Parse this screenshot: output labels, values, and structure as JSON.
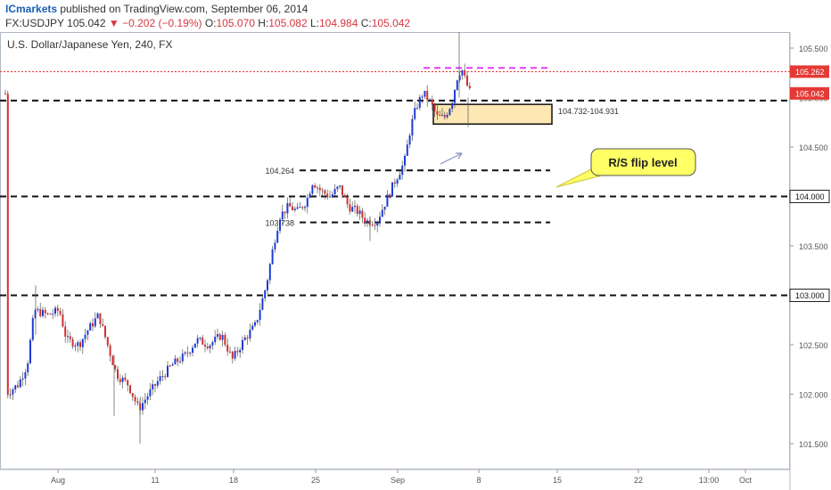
{
  "header": {
    "publisher": "ICmarkets",
    "published_text": "published on TradingView.com, September 06, 2014",
    "symbol": "FX:USDJPY",
    "last": "105.042",
    "change": "▼ −0.202 (−0.19%)",
    "o_label": "O:",
    "o_value": "105.070",
    "h_label": "H:",
    "h_value": "105.082",
    "l_label": "L:",
    "l_value": "104.984",
    "c_label": "C:",
    "c_value": "105.042"
  },
  "chart_data": {
    "type": "candlestick",
    "title": "U.S. Dollar/Japanese Yen, 240, FX",
    "ylim": [
      101.3,
      105.75
    ],
    "y_ticks": [
      "105.500",
      "105.000",
      "104.500",
      "104.000",
      "103.500",
      "103.000",
      "102.500",
      "102.000",
      "101.500"
    ],
    "x_ticks": [
      "Aug",
      "11",
      "18",
      "25",
      "Sep",
      "8",
      "15",
      "22",
      "13:00",
      "Oct"
    ],
    "price_badges": [
      {
        "label": "105.262",
        "value": 105.262,
        "color": "#e53935"
      },
      {
        "label": "105.042",
        "value": 105.042,
        "color": "#e53935"
      }
    ],
    "axis_labels": [
      {
        "label": "104.000",
        "value": 104.0
      },
      {
        "label": "103.000",
        "value": 103.0
      }
    ],
    "levels": [
      {
        "value": 105.262,
        "style": "dotted",
        "color": "#e53935",
        "extent": "full"
      },
      {
        "value": 105.3,
        "style": "dashed",
        "color": "#e040fb",
        "extent": "short"
      },
      {
        "value": 104.97,
        "style": "dashed",
        "color": "#111111",
        "extent": "full"
      },
      {
        "value": 104.264,
        "style": "dashed",
        "color": "#111111",
        "extent": "partial",
        "label": "104.264"
      },
      {
        "value": 104.0,
        "style": "dashed",
        "color": "#111111",
        "extent": "full"
      },
      {
        "value": 103.738,
        "style": "dashed",
        "color": "#111111",
        "extent": "partial",
        "label": "103.738"
      },
      {
        "value": 103.0,
        "style": "dashed",
        "color": "#111111",
        "extent": "full"
      }
    ],
    "zone": {
      "low": 104.732,
      "high": 104.931,
      "label": "104.732-104.931",
      "color": "#fde7b3"
    },
    "callout": {
      "text": "R/S flip level",
      "color": "#ffff66"
    },
    "colors": {
      "up": "#1e3bd6",
      "down": "#d32f2f"
    }
  }
}
